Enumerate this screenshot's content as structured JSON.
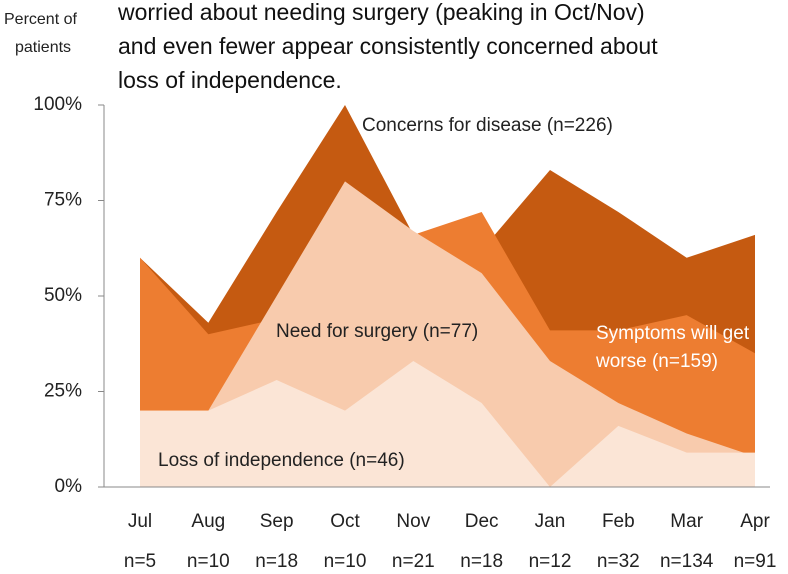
{
  "chart_data": {
    "type": "area",
    "title_lines": [
      "worried about needing surgery (peaking in Oct/Nov)",
      "and even fewer appear consistently concerned about",
      "loss of independence."
    ],
    "y_label_lines": [
      "Percent of",
      "patients"
    ],
    "categories": [
      "Jul",
      "Aug",
      "Sep",
      "Oct",
      "Nov",
      "Dec",
      "Jan",
      "Feb",
      "Mar",
      "Apr"
    ],
    "sample_sizes": [
      "n=5",
      "n=10",
      "n=18",
      "n=10",
      "n=21",
      "n=18",
      "n=12",
      "n=32",
      "n=134",
      "n=91"
    ],
    "series": [
      {
        "name": "Concerns for disease (n=226)",
        "color": "#c55a11",
        "values": [
          60,
          43,
          72,
          100,
          66,
          62,
          83,
          72,
          60,
          66
        ]
      },
      {
        "name": "Symptoms will get worse (n=159)",
        "color": "#ed7d31",
        "values": [
          60,
          40,
          44,
          70,
          66,
          72,
          41,
          41,
          45,
          35
        ]
      },
      {
        "name": "Need for surgery (n=77)",
        "color": "#f8cbad",
        "values": [
          20,
          20,
          50,
          80,
          67,
          56,
          33,
          22,
          14,
          8
        ]
      },
      {
        "name": "Loss of independence (n=46)",
        "color": "#fbe5d6",
        "values": [
          20,
          20,
          28,
          20,
          33,
          22,
          0,
          16,
          9,
          9
        ]
      }
    ],
    "ylim": [
      0,
      100
    ],
    "yticks": [
      {
        "value": 0,
        "label": "0%"
      },
      {
        "value": 25,
        "label": "25%"
      },
      {
        "value": 50,
        "label": "50%"
      },
      {
        "value": 75,
        "label": "75%"
      },
      {
        "value": 100,
        "label": "100%"
      }
    ]
  }
}
